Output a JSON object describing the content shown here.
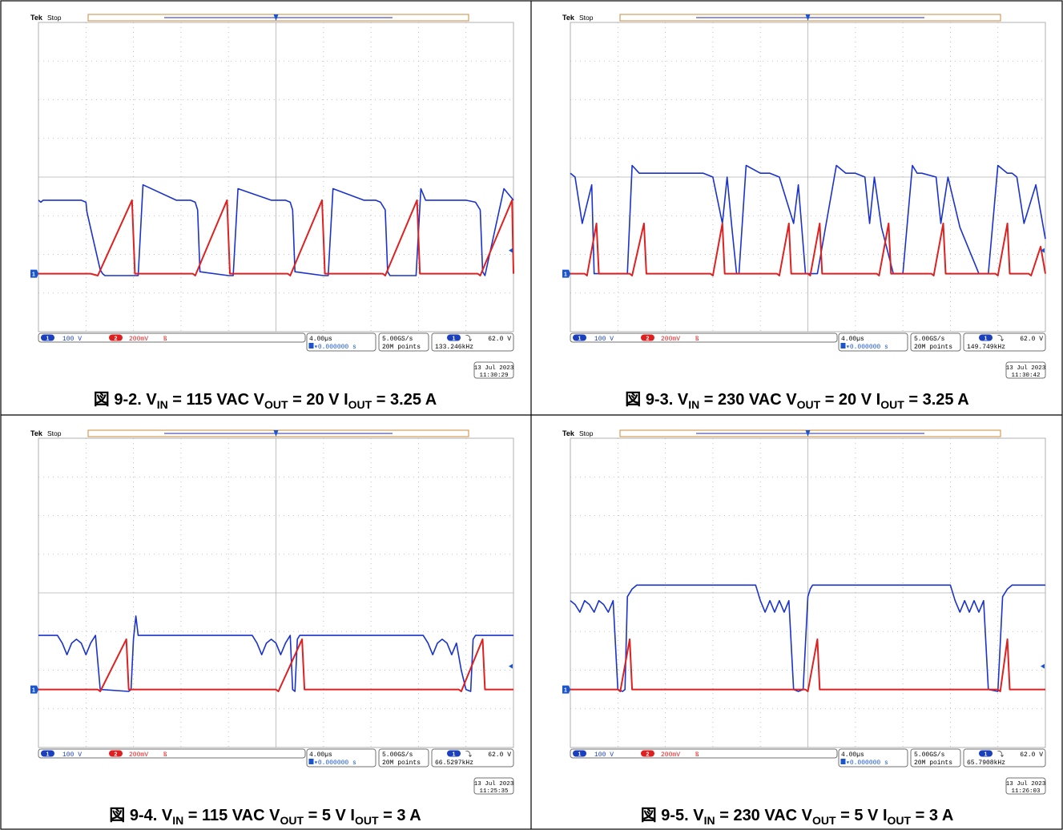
{
  "figure_prefix": "図",
  "common": {
    "brand": "Tek",
    "status": "Stop",
    "ch1_num": "1",
    "ch1_scale": "100 V",
    "ch2_num": "2",
    "ch2_scale": "200mV",
    "bw_glyph": "Ⲃ",
    "timebase": "4.00µs",
    "trigger_pos": "▾0.000000 s",
    "sample_rate": "5.00GS/s",
    "record_length": "20M points",
    "trigger_level": "62.0 V",
    "trigger_ch": "1",
    "trigger_slope": "⤵",
    "ground_marker": "1",
    "trigger_marker": "T",
    "colors": {
      "ch1": "#1a33cc",
      "ch2": "#e02020",
      "grid": "#b0b0b0",
      "border": "#000000",
      "trigger_orange": "#cc8a3a"
    }
  },
  "chart_data": [
    {
      "type": "line",
      "caption_number": "9-2",
      "caption": {
        "vin_label": "V",
        "vin_sub": "IN",
        "vin_val": "= 115 VAC",
        "vout_label": "V",
        "vout_sub": "OUT",
        "vout_val": "= 20 V",
        "iout_label": "I",
        "iout_sub": "OUT",
        "iout_val": "= 3.25 A"
      },
      "frequency": "133.246kHz",
      "date": "13 Jul 2023",
      "time": "11:30:29",
      "xlim": [
        0,
        10
      ],
      "ylim": [
        -4,
        4
      ],
      "x_unit": "div",
      "y_unit": "div",
      "grid": true,
      "series": [
        {
          "name": "1",
          "color": "#1a33cc",
          "x": [
            0,
            0.05,
            0.1,
            0.9,
            1,
            1.02,
            1.15,
            1.3,
            1.35,
            1.4,
            2,
            2.1,
            2.2,
            2.9,
            3.1,
            3.2,
            3.3,
            3.35,
            3.4,
            4,
            4.1,
            4.2,
            4.9,
            5.1,
            5.2,
            5.3,
            5.35,
            5.4,
            6.0,
            6.1,
            6.2,
            6.85,
            6.95,
            7.1,
            7.2,
            7.3,
            7.35,
            7.4,
            7.95,
            8.05,
            8.15,
            8.9,
            9.0,
            9.2,
            9.3,
            9.35,
            9.4,
            9.8,
            10
          ],
          "y": [
            -0.6,
            -0.65,
            -0.6,
            -0.6,
            -0.65,
            -0.9,
            -1.6,
            -2.4,
            -2.5,
            -2.55,
            -2.55,
            -2.55,
            -0.2,
            -0.6,
            -0.6,
            -0.6,
            -0.65,
            -0.85,
            -2.45,
            -2.55,
            -2.55,
            -0.3,
            -0.6,
            -0.6,
            -0.6,
            -0.65,
            -0.85,
            -2.45,
            -2.55,
            -2.55,
            -0.3,
            -0.6,
            -0.6,
            -0.6,
            -0.65,
            -0.85,
            -2.45,
            -2.55,
            -2.55,
            -0.3,
            -0.6,
            -0.6,
            -0.6,
            -0.65,
            -0.85,
            -2.45,
            -2.55,
            -0.3,
            -0.6
          ]
        },
        {
          "name": "2",
          "color": "#e02020",
          "x": [
            0,
            1.1,
            1.25,
            1.97,
            2.03,
            3.25,
            3.3,
            3.97,
            4.03,
            5.25,
            5.3,
            5.97,
            6.03,
            7.25,
            7.3,
            7.97,
            8.03,
            9.25,
            9.3,
            9.97,
            10
          ],
          "y": [
            -2.5,
            -2.5,
            -2.55,
            -0.6,
            -2.5,
            -2.5,
            -2.55,
            -0.6,
            -2.5,
            -2.5,
            -2.55,
            -0.6,
            -2.5,
            -2.5,
            -2.55,
            -0.6,
            -2.5,
            -2.5,
            -2.55,
            -0.6,
            -2.5
          ]
        }
      ]
    },
    {
      "type": "line",
      "caption_number": "9-3",
      "caption": {
        "vin_label": "V",
        "vin_sub": "IN",
        "vin_val": "= 230 VAC",
        "vout_label": "V",
        "vout_sub": "OUT",
        "vout_val": "= 20 V",
        "iout_label": "I",
        "iout_sub": "OUT",
        "iout_val": "= 3.25 A"
      },
      "frequency": "149.749kHz",
      "date": "13 Jul 2023",
      "time": "11:30:42",
      "xlim": [
        0,
        10
      ],
      "ylim": [
        -4,
        4
      ],
      "x_unit": "div",
      "y_unit": "div",
      "grid": true,
      "series": [
        {
          "name": "1",
          "color": "#1a33cc",
          "x": [
            0,
            0.1,
            0.25,
            0.45,
            0.5,
            1.2,
            1.3,
            1.45,
            1.6,
            2.7,
            2.8,
            3.0,
            3.2,
            3.3,
            3.4,
            3.5,
            3.55,
            3.7,
            4.0,
            4.2,
            4.4,
            4.7,
            4.8,
            4.95,
            5.2,
            5.6,
            5.8,
            6.0,
            6.2,
            6.3,
            6.4,
            6.55,
            6.8,
            7.0,
            7.2,
            7.3,
            7.4,
            7.7,
            7.8,
            7.95,
            8.2,
            8.6,
            8.8,
            9.0,
            9.2,
            9.3,
            9.4,
            9.55,
            9.8,
            10
          ],
          "y": [
            0.1,
            0.0,
            -1.2,
            -0.2,
            -2.5,
            -2.5,
            0.3,
            0.1,
            0.1,
            0.1,
            0.1,
            0.0,
            -1.2,
            0.0,
            -1.3,
            -2.5,
            -2.5,
            0.3,
            0.1,
            0.1,
            0.0,
            -1.2,
            -0.2,
            -2.5,
            -2.5,
            0.3,
            0.1,
            0.1,
            0.0,
            -1.2,
            0.0,
            -1.3,
            -2.5,
            -2.5,
            0.3,
            0.1,
            0.1,
            0.0,
            -1.2,
            0.0,
            -1.3,
            -2.5,
            -2.5,
            0.3,
            0.1,
            0.1,
            0.0,
            -1.2,
            -0.2,
            -1.6
          ]
        },
        {
          "name": "2",
          "color": "#e02020",
          "x": [
            0,
            0.3,
            0.35,
            0.55,
            0.6,
            1.25,
            1.3,
            1.55,
            1.6,
            2.95,
            3.0,
            3.2,
            3.25,
            3.45,
            3.5,
            3.6,
            4.35,
            4.4,
            4.6,
            4.65,
            5.0,
            5.05,
            5.25,
            5.3,
            6.45,
            6.5,
            6.7,
            6.75,
            7.6,
            7.65,
            7.85,
            7.9,
            8.95,
            9.0,
            9.2,
            9.25,
            9.65,
            9.7,
            9.9,
            10
          ],
          "y": [
            -2.5,
            -2.5,
            -2.55,
            -1.2,
            -2.5,
            -2.5,
            -2.55,
            -1.2,
            -2.5,
            -2.5,
            -2.55,
            -1.2,
            -2.5,
            -2.5,
            -2.5,
            -2.5,
            -2.5,
            -2.55,
            -1.2,
            -2.5,
            -2.5,
            -2.55,
            -1.2,
            -2.5,
            -2.5,
            -2.55,
            -1.2,
            -2.5,
            -2.5,
            -2.55,
            -1.2,
            -2.5,
            -2.5,
            -2.55,
            -1.2,
            -2.5,
            -2.5,
            -2.55,
            -1.8,
            -2.5
          ]
        }
      ]
    },
    {
      "type": "line",
      "caption_number": "9-4",
      "caption": {
        "vin_label": "V",
        "vin_sub": "IN",
        "vin_val": "= 115 VAC",
        "vout_label": "V",
        "vout_sub": "OUT",
        "vout_val": "= 5 V",
        "iout_label": "I",
        "iout_sub": "OUT",
        "iout_val": "= 3 A"
      },
      "frequency": "66.5297kHz",
      "date": "13 Jul 2023",
      "time": "11:25:35",
      "xlim": [
        0,
        10
      ],
      "ylim": [
        -4,
        4
      ],
      "x_unit": "div",
      "y_unit": "div",
      "grid": true,
      "series": [
        {
          "name": "1",
          "color": "#1a33cc",
          "x": [
            0,
            0.4,
            0.5,
            0.6,
            0.7,
            0.8,
            0.9,
            1.0,
            1.1,
            1.2,
            1.3,
            1.9,
            1.95,
            2.0,
            2.05,
            2.1,
            2.5,
            3.5,
            4.4,
            4.5,
            4.6,
            4.7,
            4.8,
            4.9,
            5.0,
            5.1,
            5.2,
            5.3,
            5.35,
            5.4,
            5.45,
            5.5,
            6.0,
            8.0,
            8.1,
            8.2,
            8.3,
            8.4,
            8.5,
            8.6,
            8.7,
            8.8,
            8.9,
            9.0,
            9.1,
            9.15,
            9.2,
            9.25,
            9.3,
            10
          ],
          "y": [
            -1.1,
            -1.1,
            -1.3,
            -1.6,
            -1.3,
            -1.2,
            -1.3,
            -1.6,
            -1.3,
            -1.1,
            -2.5,
            -2.55,
            -2.5,
            -1.2,
            -0.6,
            -1.1,
            -1.1,
            -1.1,
            -1.1,
            -1.1,
            -1.3,
            -1.6,
            -1.3,
            -1.2,
            -1.3,
            -1.6,
            -1.3,
            -1.1,
            -2.5,
            -2.55,
            -1.2,
            -1.1,
            -1.1,
            -1.1,
            -1.1,
            -1.3,
            -1.6,
            -1.3,
            -1.2,
            -1.3,
            -1.6,
            -1.3,
            -2.0,
            -2.5,
            -2.55,
            -1.2,
            -1.1,
            -1.1,
            -1.1,
            -1.1
          ]
        },
        {
          "name": "2",
          "color": "#e02020",
          "x": [
            0,
            1.25,
            1.3,
            1.85,
            1.9,
            5.0,
            5.05,
            5.55,
            5.6,
            8.85,
            8.9,
            9.35,
            9.4,
            10
          ],
          "y": [
            -2.5,
            -2.5,
            -2.55,
            -1.2,
            -2.5,
            -2.5,
            -2.55,
            -1.2,
            -2.5,
            -2.5,
            -2.55,
            -1.2,
            -2.5,
            -2.5
          ]
        }
      ]
    },
    {
      "type": "line",
      "caption_number": "9-5",
      "caption": {
        "vin_label": "V",
        "vin_sub": "IN",
        "vin_val": "= 230 VAC",
        "vout_label": "V",
        "vout_sub": "OUT",
        "vout_val": "= 5 V",
        "iout_label": "I",
        "iout_sub": "OUT",
        "iout_val": "= 3 A"
      },
      "frequency": "65.7908kHz",
      "date": "13 Jul 2023",
      "time": "11:26:03",
      "xlim": [
        0,
        10
      ],
      "ylim": [
        -4,
        4
      ],
      "x_unit": "div",
      "y_unit": "div",
      "grid": true,
      "series": [
        {
          "name": "1",
          "color": "#1a33cc",
          "x": [
            0,
            0.1,
            0.2,
            0.3,
            0.4,
            0.5,
            0.6,
            0.7,
            0.8,
            0.9,
            1.0,
            1.1,
            1.15,
            1.2,
            1.3,
            1.4,
            1.5,
            2.0,
            3.0,
            3.9,
            4.0,
            4.1,
            4.2,
            4.3,
            4.4,
            4.5,
            4.6,
            4.7,
            4.8,
            4.9,
            5.0,
            5.05,
            5.1,
            5.2,
            5.3,
            5.4,
            6.0,
            7.0,
            7.9,
            8.0,
            8.1,
            8.2,
            8.3,
            8.4,
            8.5,
            8.6,
            8.7,
            8.8,
            9.0,
            9.1,
            9.2,
            9.3,
            9.4,
            10
          ],
          "y": [
            -0.2,
            -0.3,
            -0.5,
            -0.2,
            -0.3,
            -0.5,
            -0.2,
            -0.3,
            -0.5,
            -0.2,
            -2.5,
            -2.55,
            -2.5,
            -0.1,
            0.1,
            0.2,
            0.2,
            0.2,
            0.2,
            0.2,
            -0.2,
            -0.5,
            -0.2,
            -0.5,
            -0.2,
            -0.5,
            -0.2,
            -2.5,
            -2.55,
            -2.5,
            -0.1,
            0.1,
            0.2,
            0.2,
            0.2,
            0.2,
            0.2,
            0.2,
            0.2,
            0.2,
            -0.2,
            -0.5,
            -0.2,
            -0.5,
            -0.2,
            -0.5,
            -0.2,
            -2.5,
            -2.55,
            -0.1,
            0.1,
            0.2,
            0.2,
            0.2
          ]
        },
        {
          "name": "2",
          "color": "#e02020",
          "x": [
            0,
            1.0,
            1.05,
            1.25,
            1.3,
            4.95,
            5.0,
            5.2,
            5.25,
            9.0,
            9.05,
            9.2,
            9.25,
            10
          ],
          "y": [
            -2.5,
            -2.5,
            -2.55,
            -1.2,
            -2.5,
            -2.5,
            -2.55,
            -1.2,
            -2.5,
            -2.5,
            -2.55,
            -1.2,
            -2.5,
            -2.5
          ]
        }
      ]
    }
  ]
}
